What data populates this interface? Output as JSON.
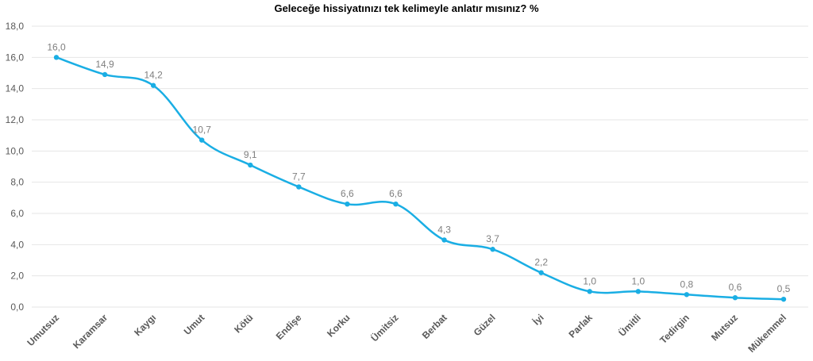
{
  "chart_data": {
    "type": "line",
    "title": "Geleceğe hissiyatınızı tek kelimeyle anlatır mısınız? %",
    "xlabel": "",
    "ylabel": "",
    "ylim": [
      0,
      18
    ],
    "yticks": [
      "0,0",
      "2,0",
      "4,0",
      "6,0",
      "8,0",
      "10,0",
      "12,0",
      "14,0",
      "16,0",
      "18,0"
    ],
    "grid": true,
    "categories": [
      "Umutsuz",
      "Karamsar",
      "Kaygı",
      "Umut",
      "Kötü",
      "Endişe",
      "Korku",
      "Ümitsiz",
      "Berbat",
      "Güzel",
      "İyi",
      "Parlak",
      "Ümitli",
      "Tedirgin",
      "Mutsuz",
      "Mükemmel"
    ],
    "series": [
      {
        "values": [
          16.0,
          14.9,
          14.2,
          10.7,
          9.1,
          7.7,
          6.6,
          6.6,
          4.3,
          3.7,
          2.2,
          1.0,
          1.0,
          0.8,
          0.6,
          0.5
        ],
        "labels": [
          "16,0",
          "14,9",
          "14,2",
          "10,7",
          "9,1",
          "7,7",
          "6,6",
          "6,6",
          "4,3",
          "3,7",
          "2,2",
          "1,0",
          "1,0",
          "0,8",
          "0,6",
          "0,5"
        ],
        "color": "#1aaee4"
      }
    ],
    "colors": {
      "line": "#1aaee4",
      "grid": "#e6e6e6",
      "axis_text": "#595959",
      "label_text": "#7f7f7f"
    }
  }
}
